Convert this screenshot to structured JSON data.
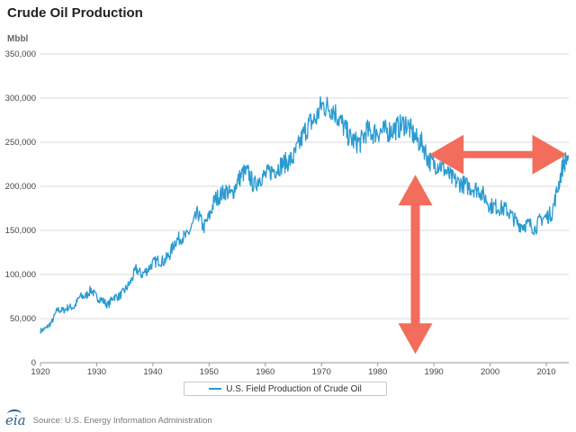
{
  "page": {
    "title": "Crude Oil Production",
    "source": "Source: U.S. Energy Information Administration",
    "logo_text": "eia"
  },
  "colors": {
    "series": "#2a9bd1",
    "arrow": "#f26d5b",
    "grid": "#d8d8d8",
    "axis": "#9a9a9a"
  },
  "chart_data": {
    "type": "line",
    "title": "Crude Oil Production",
    "ylabel": "Mbbl",
    "xlabel": "",
    "xlim": [
      1920,
      2014
    ],
    "ylim": [
      0,
      350000
    ],
    "x_ticks": [
      1920,
      1930,
      1940,
      1950,
      1960,
      1970,
      1980,
      1990,
      2000,
      2010
    ],
    "y_ticks": [
      0,
      50000,
      100000,
      150000,
      200000,
      250000,
      300000,
      350000
    ],
    "y_tick_labels": [
      "0",
      "50,000",
      "100,000",
      "150,000",
      "200,000",
      "250,000",
      "300,000",
      "350,000"
    ],
    "legend": "top-center-below",
    "series": [
      {
        "name": "U.S. Field Production of Crude Oil",
        "x": [
          1920,
          1921,
          1922,
          1923,
          1924,
          1925,
          1926,
          1927,
          1928,
          1929,
          1930,
          1931,
          1932,
          1933,
          1934,
          1935,
          1936,
          1937,
          1938,
          1939,
          1940,
          1941,
          1942,
          1943,
          1944,
          1945,
          1946,
          1947,
          1948,
          1949,
          1950,
          1951,
          1952,
          1953,
          1954,
          1955,
          1956,
          1957,
          1958,
          1959,
          1960,
          1961,
          1962,
          1963,
          1964,
          1965,
          1966,
          1967,
          1968,
          1969,
          1970,
          1971,
          1972,
          1973,
          1974,
          1975,
          1976,
          1977,
          1978,
          1979,
          1980,
          1981,
          1982,
          1983,
          1984,
          1985,
          1986,
          1987,
          1988,
          1989,
          1990,
          1991,
          1992,
          1993,
          1994,
          1995,
          1996,
          1997,
          1998,
          1999,
          2000,
          2001,
          2002,
          2003,
          2004,
          2005,
          2006,
          2007,
          2008,
          2009,
          2010,
          2011,
          2012,
          2013,
          2014
        ],
        "values": [
          36000,
          39000,
          46000,
          60000,
          59000,
          63000,
          63000,
          75000,
          75000,
          83000,
          74000,
          71000,
          65000,
          75000,
          75000,
          82000,
          91000,
          106000,
          100000,
          105000,
          113000,
          116000,
          115000,
          123000,
          138000,
          142000,
          143000,
          155000,
          170000,
          153000,
          165000,
          185000,
          190000,
          195000,
          190000,
          205000,
          215000,
          215000,
          200000,
          210000,
          212000,
          217000,
          220000,
          225000,
          228000,
          232000,
          247000,
          262000,
          272000,
          276000,
          292000,
          290000,
          288000,
          278000,
          267000,
          255000,
          250000,
          250000,
          263000,
          260000,
          262000,
          262000,
          263000,
          265000,
          268000,
          272000,
          262000,
          252000,
          248000,
          230000,
          225000,
          225000,
          218000,
          210000,
          205000,
          203000,
          200000,
          198000,
          196000,
          188000,
          178000,
          177000,
          175000,
          173000,
          165000,
          157000,
          156000,
          157000,
          152000,
          163000,
          165000,
          170000,
          197000,
          225000,
          235000
        ]
      }
    ],
    "annotations": [
      {
        "type": "double-arrow",
        "orientation": "vertical",
        "x": 1986.7,
        "y_range": [
          10000,
          213000
        ]
      },
      {
        "type": "double-arrow",
        "orientation": "horizontal",
        "y": 236000,
        "x_range": [
          1989.2,
          2013.6
        ]
      }
    ]
  }
}
